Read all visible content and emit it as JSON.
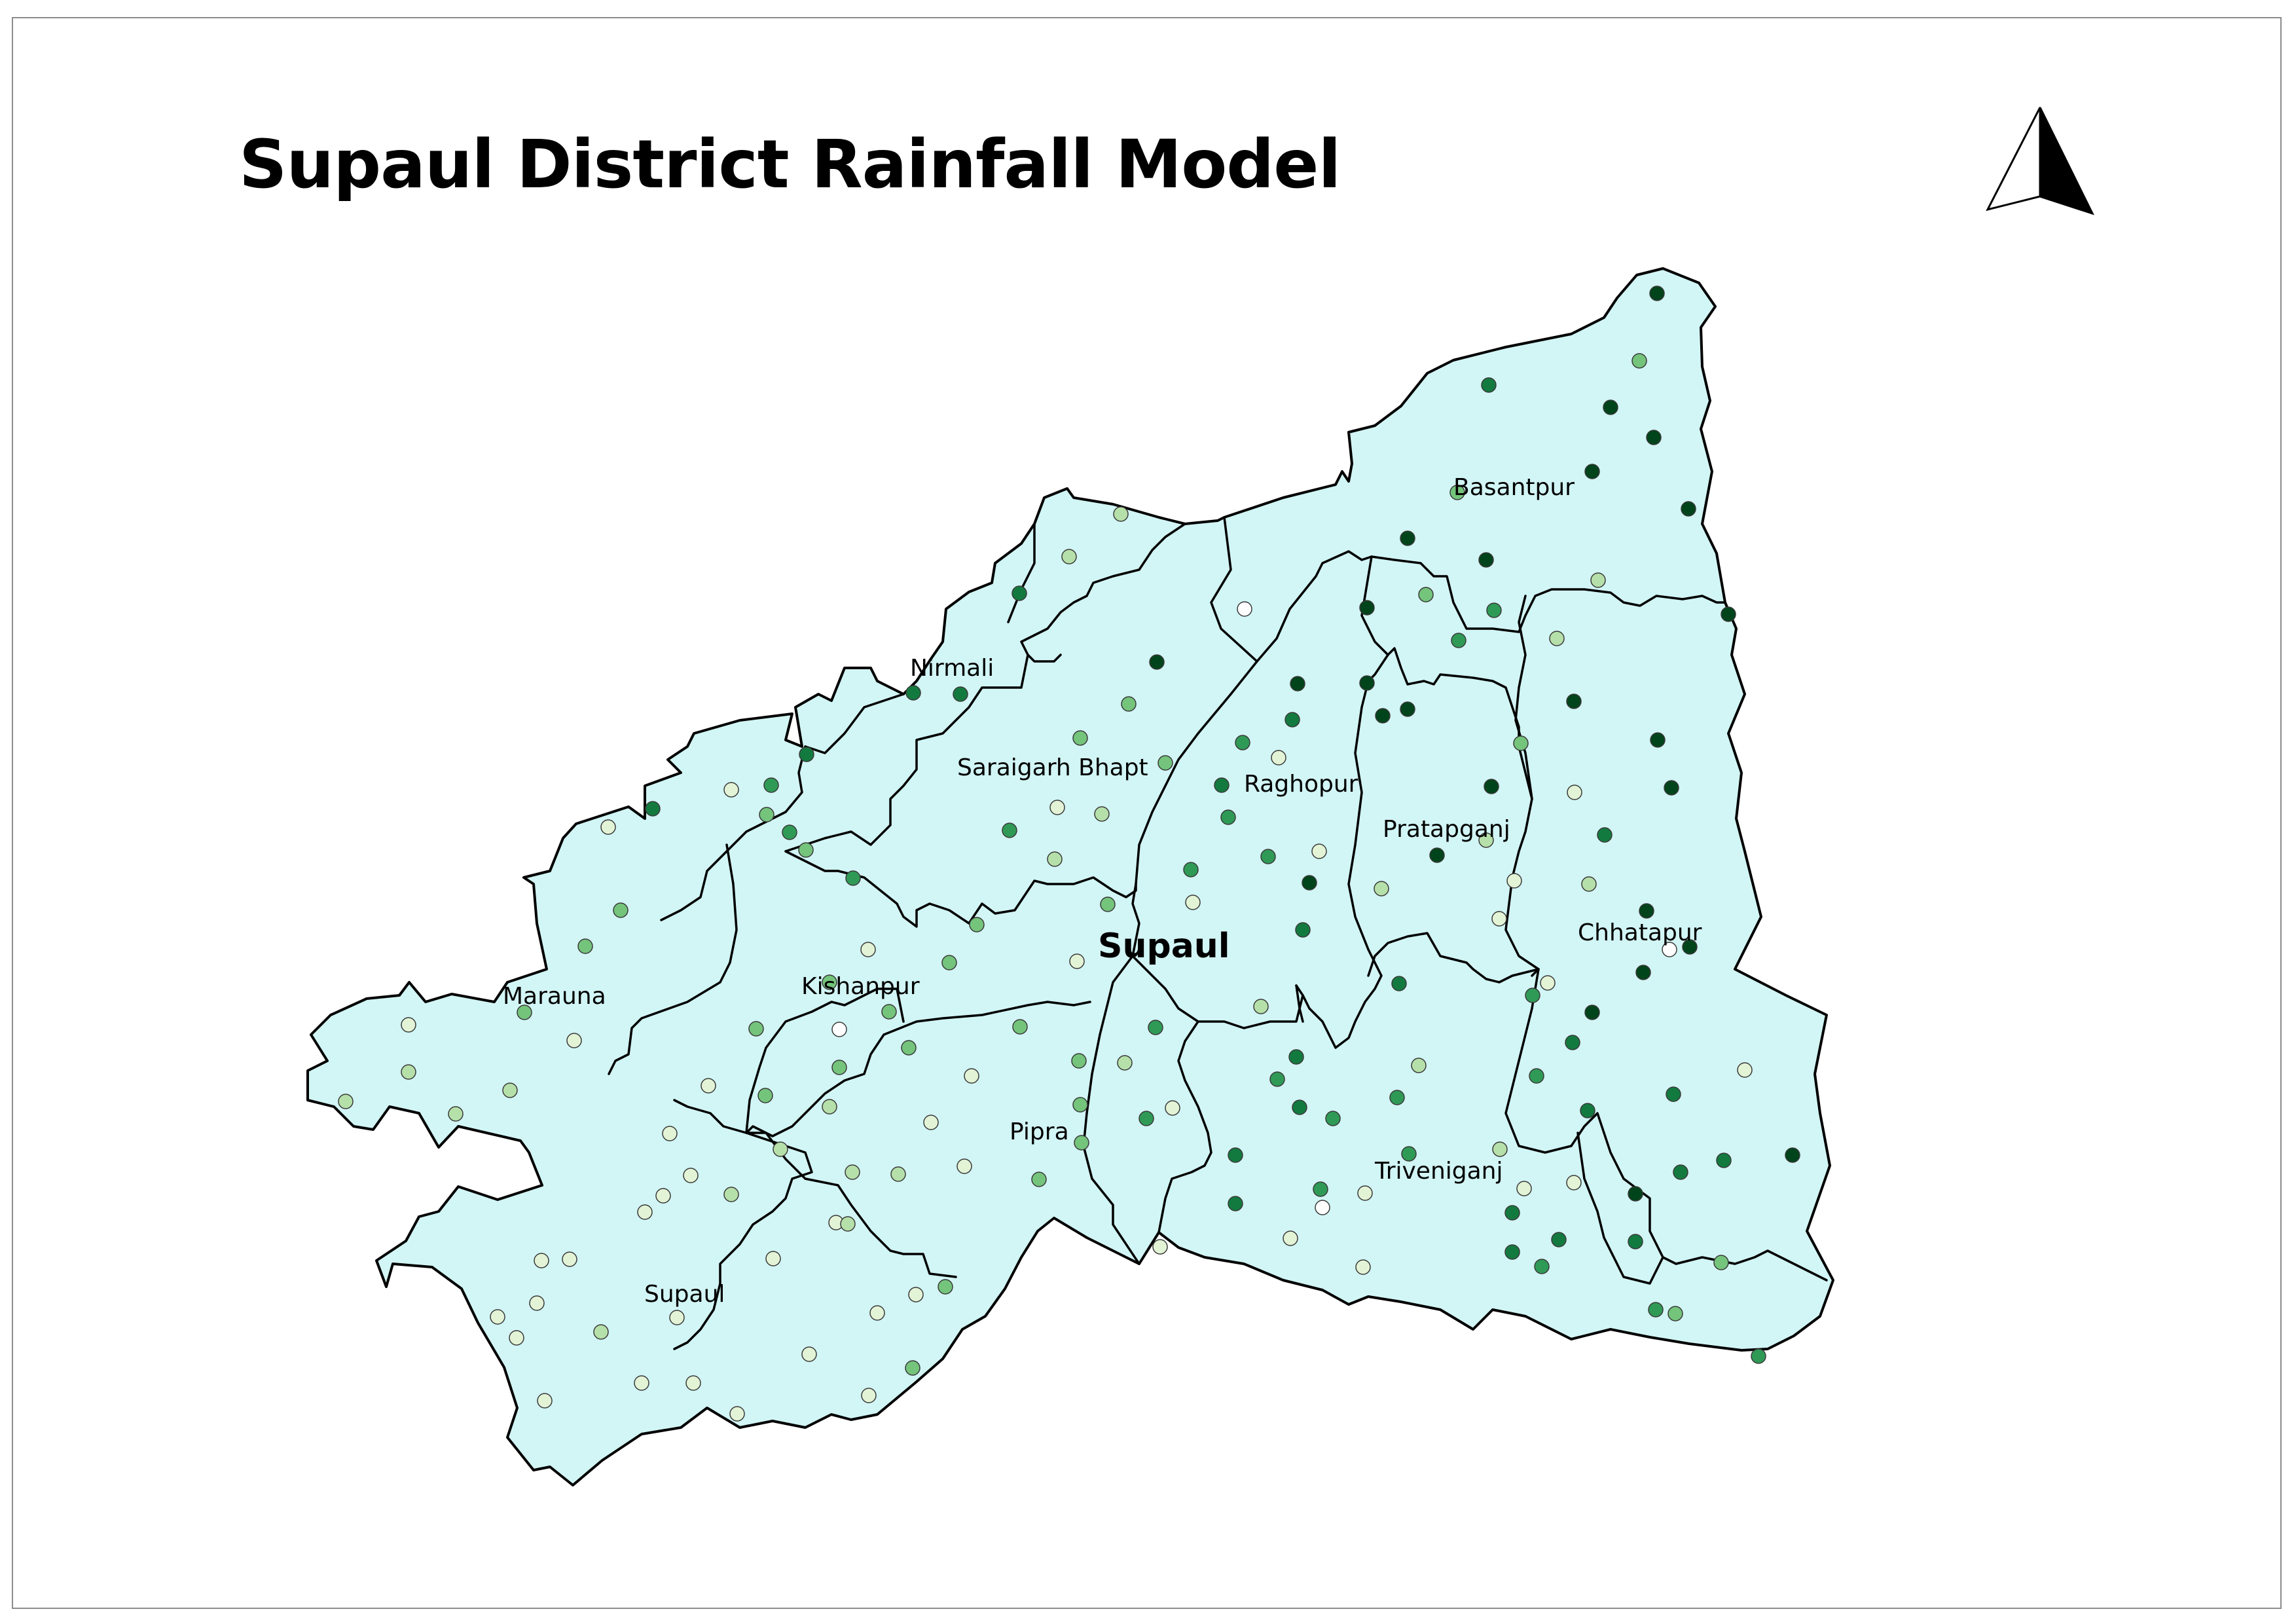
{
  "title": "Supaul District Rainfall Model",
  "district_label": "Supaul",
  "block_labels": [
    "Basantpur",
    "Nirmali",
    "Saraigarh Bhapt",
    "Raghopur",
    "Pratapganj",
    "Chhatapur",
    "Marauna",
    "Kishanpur",
    "Pipra",
    "Triveniganj",
    "Supaul"
  ],
  "icons": {
    "north_arrow": "north-arrow-icon"
  },
  "colors": {
    "district_fill": "#d2f5f5",
    "rainfall_classes": [
      "#ffffff",
      "#e3f4d6",
      "#b6e0a9",
      "#74c47c",
      "#2f9a56",
      "#137a3f",
      "#00441b"
    ]
  }
}
